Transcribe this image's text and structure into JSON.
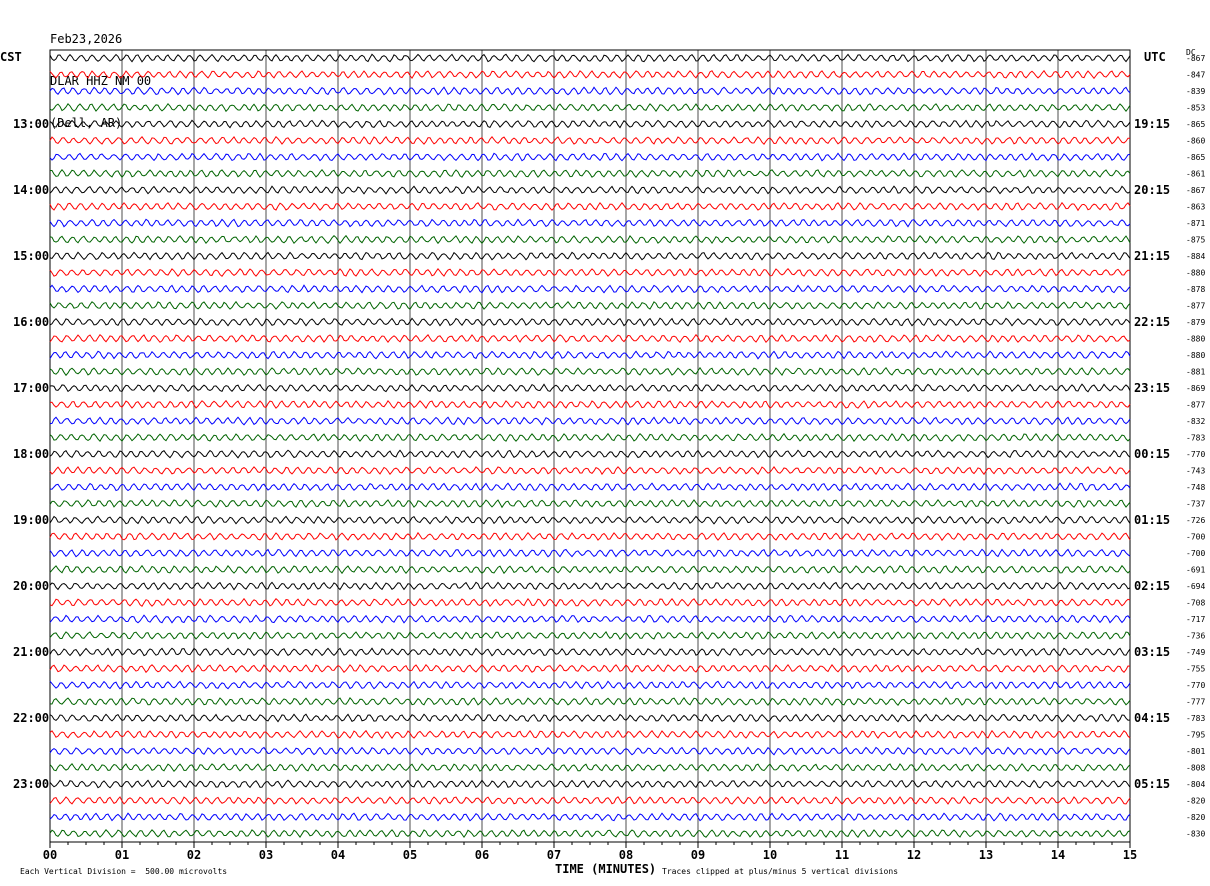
{
  "header": {
    "date": "Feb23,2026",
    "station": "DLAR HHZ NM 00",
    "location": "(Dell, AR)"
  },
  "left_axis_label": "CST",
  "right_axis_label": "UTC",
  "dc_label": "DC",
  "footer": {
    "vertical_division": "Each Vertical Division =  500.00 microvolts",
    "clip_note": "Traces clipped at plus/minus 5 vertical divisions"
  },
  "trace_colors": [
    "#000000",
    "#ff0000",
    "#0000ff",
    "#006400"
  ],
  "chart_data": {
    "type": "line",
    "title": "",
    "xlabel": "TIME (MINUTES)",
    "ylabel": "",
    "x_ticks": [
      "00",
      "01",
      "02",
      "03",
      "04",
      "05",
      "06",
      "07",
      "08",
      "09",
      "10",
      "11",
      "12",
      "13",
      "14",
      "15"
    ],
    "xlim": [
      0,
      15
    ],
    "grid": true,
    "left_hour_labels": [
      "13:00",
      "14:00",
      "15:00",
      "16:00",
      "17:00",
      "18:00",
      "19:00",
      "20:00",
      "21:00",
      "22:00",
      "23:00"
    ],
    "right_hour_labels": [
      "19:15",
      "20:15",
      "21:15",
      "22:15",
      "23:15",
      "00:15",
      "01:15",
      "02:15",
      "03:15",
      "04:15",
      "05:15"
    ],
    "dc_offsets": [
      "-867",
      "-847",
      "-839",
      "-853",
      "-865",
      "-860",
      "-865",
      "-861",
      "-867",
      "-863",
      "-871",
      "-875",
      "-884",
      "-880",
      "-878",
      "-877",
      "-879",
      "-880",
      "-880",
      "-881",
      "-869",
      "-877",
      "-832",
      "-783",
      "-770",
      "-743",
      "-748",
      "-737",
      "-726",
      "-700",
      "-700",
      "-691",
      "-694",
      "-708",
      "-717",
      "-736",
      "-749",
      "-755",
      "-770",
      "-777",
      "-783",
      "-795",
      "-801",
      "-808",
      "-804",
      "-820",
      "-820",
      "-830"
    ],
    "series_count": 48
  }
}
